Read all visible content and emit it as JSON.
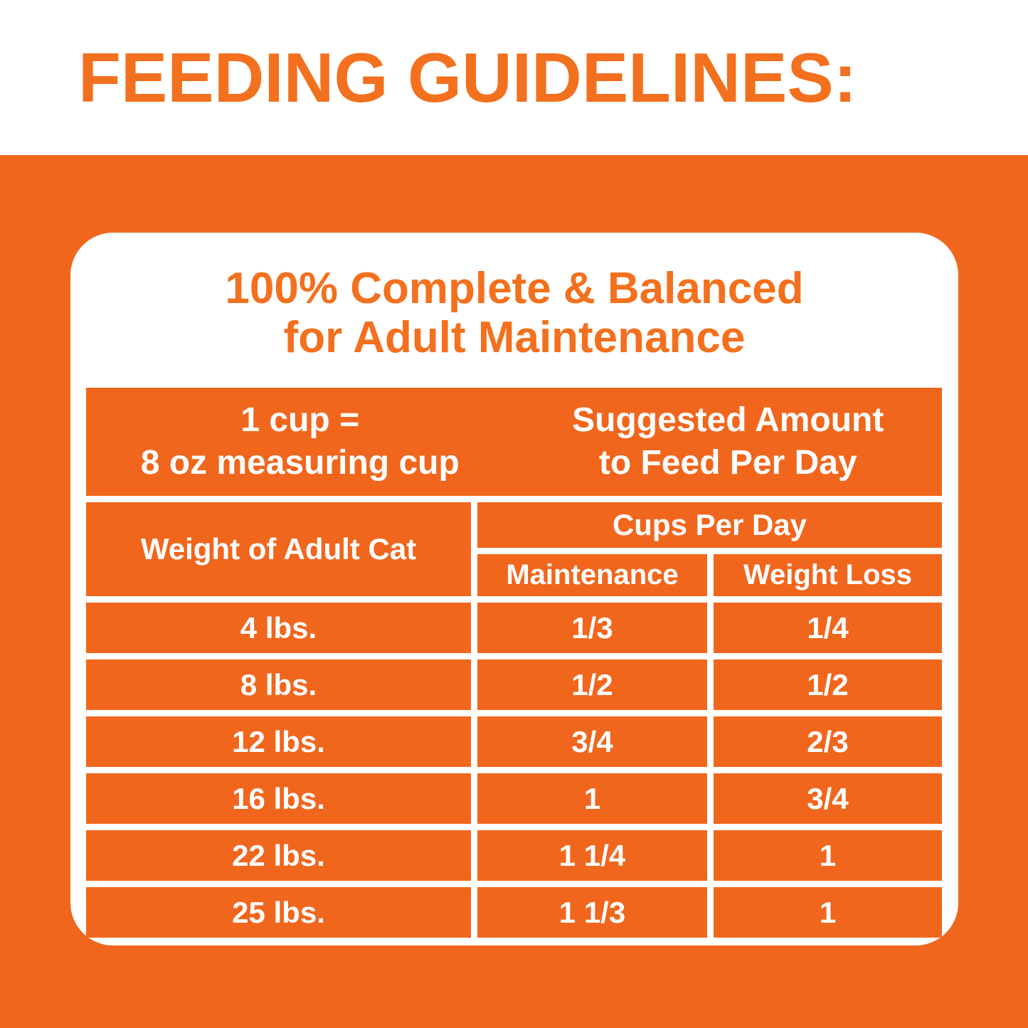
{
  "colors": {
    "orange_background": "#F1661D",
    "orange_text": "#F3701E",
    "white": "#FFFFFF"
  },
  "header": {
    "title": "FEEDING GUIDELINES:"
  },
  "panel": {
    "heading": {
      "line1": "100% Complete & Balanced",
      "line2": "for Adult Maintenance"
    },
    "cup_note": {
      "line1": "1 cup =",
      "line2": "8 oz measuring cup"
    },
    "suggested": {
      "line1": "Suggested Amount",
      "line2": "to Feed Per Day"
    }
  },
  "table": {
    "headers": {
      "weight": "Weight of Adult Cat",
      "cups": "Cups Per Day",
      "maintenance": "Maintenance",
      "weight_loss": "Weight Loss"
    },
    "rows": [
      {
        "weight": "4 lbs.",
        "maintenance": "1/3",
        "weight_loss": "1/4"
      },
      {
        "weight": "8 lbs.",
        "maintenance": "1/2",
        "weight_loss": "1/2"
      },
      {
        "weight": "12 lbs.",
        "maintenance": "3/4",
        "weight_loss": "2/3"
      },
      {
        "weight": "16 lbs.",
        "maintenance": "1",
        "weight_loss": "3/4"
      },
      {
        "weight": "22 lbs.",
        "maintenance": "1 1/4",
        "weight_loss": "1"
      },
      {
        "weight": "25 lbs.",
        "maintenance": "1 1/3",
        "weight_loss": "1"
      }
    ]
  }
}
